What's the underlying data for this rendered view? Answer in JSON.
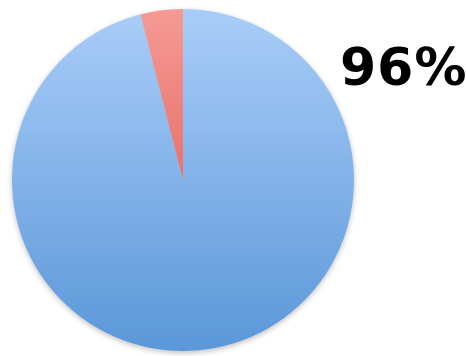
{
  "label": "96%",
  "chart_data": {
    "type": "pie",
    "slices": [
      {
        "value": 96,
        "color": "#8fb8ec"
      },
      {
        "value": 4,
        "color": "#ee8a86"
      }
    ],
    "colors": {
      "main_top": "#a9cdf8",
      "main_bottom": "#5b97d9",
      "accent_top": "#f59a95",
      "accent_bottom": "#e8726c"
    },
    "start_angle_deg": 0,
    "direction": "clockwise"
  }
}
